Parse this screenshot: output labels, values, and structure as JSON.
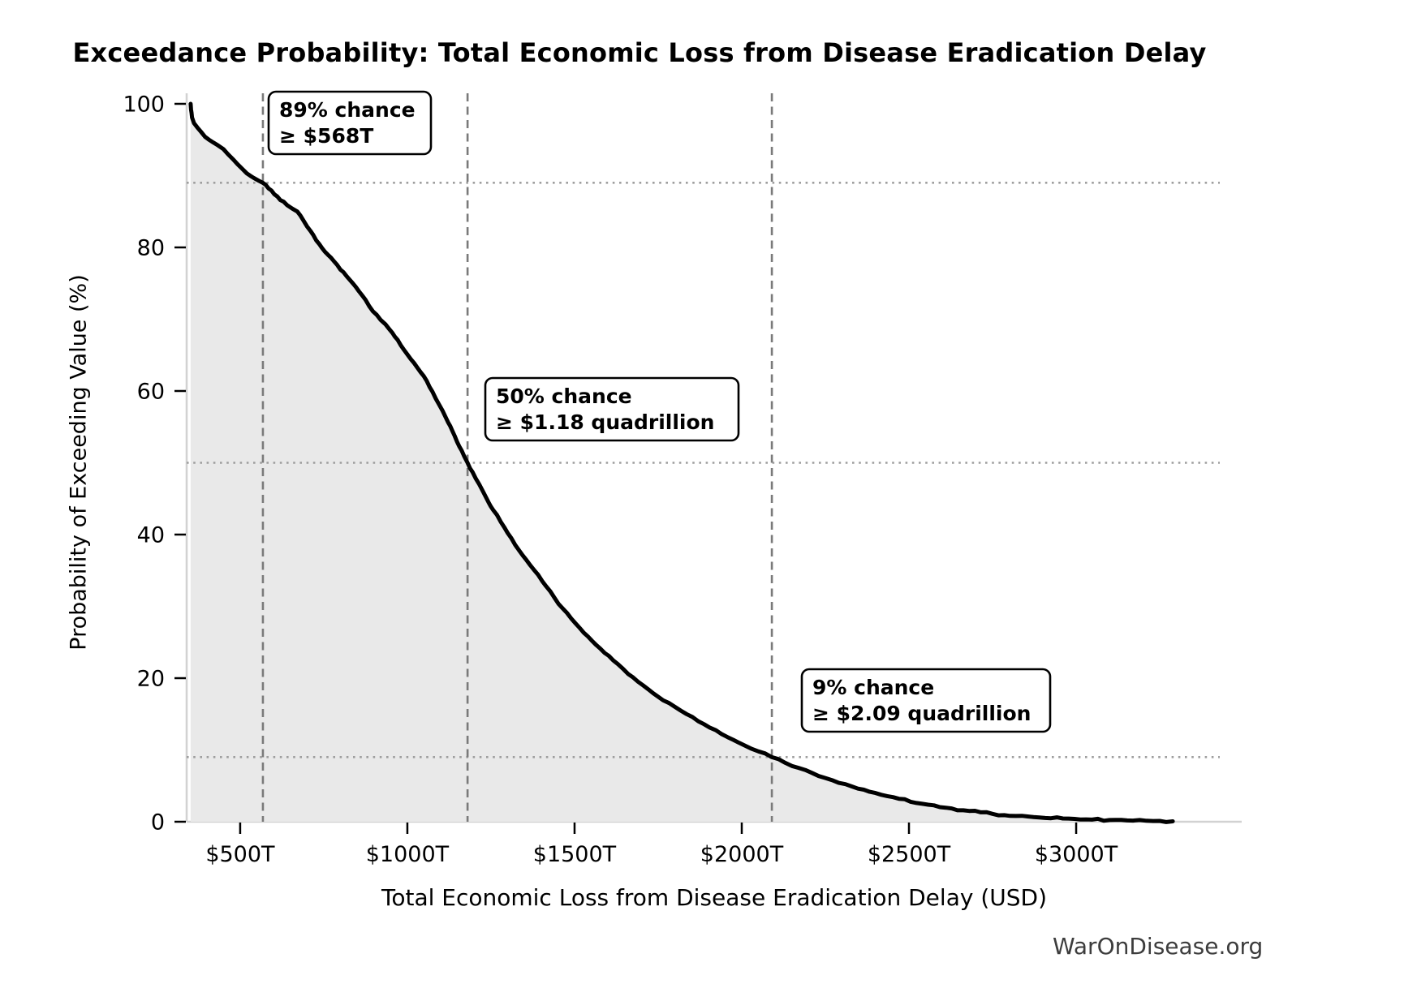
{
  "page": {
    "title": "Exceedance Probability: Total Economic Loss from Disease Eradication Delay",
    "source": "WarOnDisease.org"
  },
  "chart_data": {
    "type": "area",
    "title": "Exceedance Probability: Total Economic Loss from Disease Eradication Delay",
    "xlabel": "Total Economic Loss from Disease Eradication Delay (USD)",
    "ylabel": "Probability of Exceeding Value (%)",
    "x_unit": "trillions USD",
    "y_unit": "percent",
    "xlim_trillions": [
      340,
      3495
    ],
    "ylim_percent": [
      0,
      100
    ],
    "grid": "reference lines only (dotted horizontals and dashed verticals at annotated points)",
    "legend": "none",
    "x_ticks": [
      {
        "value": 500,
        "label": "$500T"
      },
      {
        "value": 1000,
        "label": "$1000T"
      },
      {
        "value": 1500,
        "label": "$1500T"
      },
      {
        "value": 2000,
        "label": "$2000T"
      },
      {
        "value": 2500,
        "label": "$2500T"
      },
      {
        "value": 3000,
        "label": "$3000T"
      }
    ],
    "y_ticks": [
      {
        "value": 0,
        "label": "0"
      },
      {
        "value": 20,
        "label": "20"
      },
      {
        "value": 40,
        "label": "40"
      },
      {
        "value": 60,
        "label": "60"
      },
      {
        "value": 80,
        "label": "80"
      },
      {
        "value": 100,
        "label": "100"
      }
    ],
    "annotations": [
      {
        "percent": 89,
        "value_trillions": 568,
        "lines": [
          "89% chance",
          "≥ $568T"
        ]
      },
      {
        "percent": 50,
        "value_trillions": 1180,
        "lines": [
          "50% chance",
          "≥ $1.18 quadrillion"
        ]
      },
      {
        "percent": 9,
        "value_trillions": 2090,
        "lines": [
          "9% chance",
          "≥ $2.09 quadrillion"
        ]
      }
    ],
    "curve_points_trillions_percent": [
      [
        352,
        100
      ],
      [
        353,
        99.2
      ],
      [
        356,
        98.1
      ],
      [
        362,
        97.3
      ],
      [
        372,
        96.7
      ],
      [
        383,
        96.1
      ],
      [
        395,
        95.4
      ],
      [
        407,
        95.0
      ],
      [
        420,
        94.6
      ],
      [
        434,
        94.2
      ],
      [
        450,
        93.7
      ],
      [
        463,
        93.0
      ],
      [
        478,
        92.3
      ],
      [
        492,
        91.6
      ],
      [
        505,
        91.0
      ],
      [
        520,
        90.3
      ],
      [
        540,
        89.7
      ],
      [
        555,
        89.3
      ],
      [
        568,
        89.0
      ],
      [
        585,
        88.2
      ],
      [
        602,
        87.4
      ],
      [
        620,
        86.6
      ],
      [
        640,
        85.9
      ],
      [
        656,
        85.4
      ],
      [
        671,
        85.0
      ],
      [
        690,
        83.7
      ],
      [
        710,
        82.3
      ],
      [
        727,
        81.0
      ],
      [
        745,
        79.9
      ],
      [
        762,
        79.0
      ],
      [
        780,
        78.1
      ],
      [
        800,
        76.9
      ],
      [
        818,
        76.0
      ],
      [
        837,
        75.0
      ],
      [
        855,
        73.9
      ],
      [
        875,
        72.7
      ],
      [
        897,
        71.1
      ],
      [
        920,
        69.9
      ],
      [
        948,
        68.5
      ],
      [
        962,
        67.6
      ],
      [
        980,
        66.4
      ],
      [
        1000,
        65.1
      ],
      [
        1020,
        63.9
      ],
      [
        1040,
        62.6
      ],
      [
        1058,
        61.4
      ],
      [
        1075,
        59.9
      ],
      [
        1095,
        58.1
      ],
      [
        1115,
        56.3
      ],
      [
        1135,
        54.4
      ],
      [
        1155,
        52.3
      ],
      [
        1170,
        50.9
      ],
      [
        1180,
        50.0
      ],
      [
        1195,
        48.7
      ],
      [
        1215,
        47.0
      ],
      [
        1235,
        45.2
      ],
      [
        1257,
        43.4
      ],
      [
        1279,
        41.8
      ],
      [
        1300,
        40.2
      ],
      [
        1322,
        38.6
      ],
      [
        1345,
        37.1
      ],
      [
        1368,
        35.7
      ],
      [
        1391,
        34.4
      ],
      [
        1415,
        32.8
      ],
      [
        1440,
        31.2
      ],
      [
        1465,
        29.7
      ],
      [
        1490,
        28.3
      ],
      [
        1515,
        27.0
      ],
      [
        1540,
        25.8
      ],
      [
        1565,
        24.6
      ],
      [
        1590,
        23.5
      ],
      [
        1615,
        22.5
      ],
      [
        1645,
        21.3
      ],
      [
        1675,
        20.1
      ],
      [
        1705,
        19.0
      ],
      [
        1735,
        17.9
      ],
      [
        1765,
        16.9
      ],
      [
        1800,
        16.0
      ],
      [
        1835,
        15.0
      ],
      [
        1870,
        14.0
      ],
      [
        1905,
        13.1
      ],
      [
        1940,
        12.2
      ],
      [
        1975,
        11.4
      ],
      [
        2010,
        10.6
      ],
      [
        2050,
        9.8
      ],
      [
        2090,
        9.0
      ],
      [
        2130,
        8.2
      ],
      [
        2170,
        7.5
      ],
      [
        2210,
        6.8
      ],
      [
        2270,
        5.8
      ],
      [
        2330,
        4.9
      ],
      [
        2400,
        4.0
      ],
      [
        2470,
        3.2
      ],
      [
        2540,
        2.5
      ],
      [
        2610,
        1.95
      ],
      [
        2680,
        1.5
      ],
      [
        2750,
        1.1
      ],
      [
        2820,
        0.8
      ],
      [
        2890,
        0.6
      ],
      [
        2960,
        0.45
      ],
      [
        3030,
        0.33
      ],
      [
        3100,
        0.24
      ],
      [
        3170,
        0.16
      ],
      [
        3230,
        0.1
      ],
      [
        3289,
        0.06
      ]
    ],
    "colors": {
      "curve": "#000000",
      "fill": "#e9e9e9",
      "dashed_line": "#7a7a7a",
      "dotted_line": "#9e9e9e",
      "spine": "#d2d2d2",
      "tick": "#000000",
      "annotation_border": "#000000",
      "annotation_bg": "#ffffff",
      "source_text": "#3d3d3d"
    },
    "source": "WarOnDisease.org"
  }
}
